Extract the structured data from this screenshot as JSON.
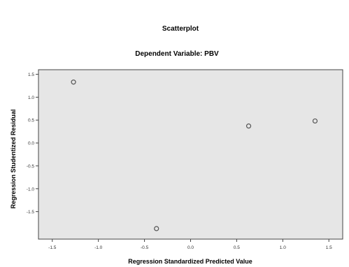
{
  "chart_data": {
    "type": "scatter",
    "title": "Scatterplot",
    "subtitle": "Dependent Variable: PBV",
    "xlabel": "Regression Standardized Predicted Value",
    "ylabel": "Regression Studentized Residual",
    "xlim": [
      -1.65,
      1.65
    ],
    "ylim": [
      -2.1,
      1.6
    ],
    "xticks": [
      -1.5,
      -1.0,
      -0.5,
      0.0,
      0.5,
      1.0,
      1.5
    ],
    "xtick_labels": [
      "-1.5",
      "-1.0",
      "-0.5",
      "0.0",
      "0.5",
      "1.0",
      "1.5"
    ],
    "yticks": [
      1.5,
      1.0,
      0.5,
      0.0,
      -0.5,
      -1.0,
      -1.5
    ],
    "ytick_labels": [
      "1.5",
      "1.0",
      "0.5",
      "0.0",
      "-0.5",
      "-1.0",
      "-1.5"
    ],
    "grid": false,
    "marker": "open-circle",
    "points": [
      {
        "x": -1.27,
        "y": 1.33
      },
      {
        "x": -0.37,
        "y": -1.87
      },
      {
        "x": 0.63,
        "y": 0.37
      },
      {
        "x": 1.35,
        "y": 0.48
      }
    ]
  },
  "colors": {
    "plot_background": "#e6e6e6",
    "marker_stroke": "#555555",
    "axis": "#444444"
  }
}
